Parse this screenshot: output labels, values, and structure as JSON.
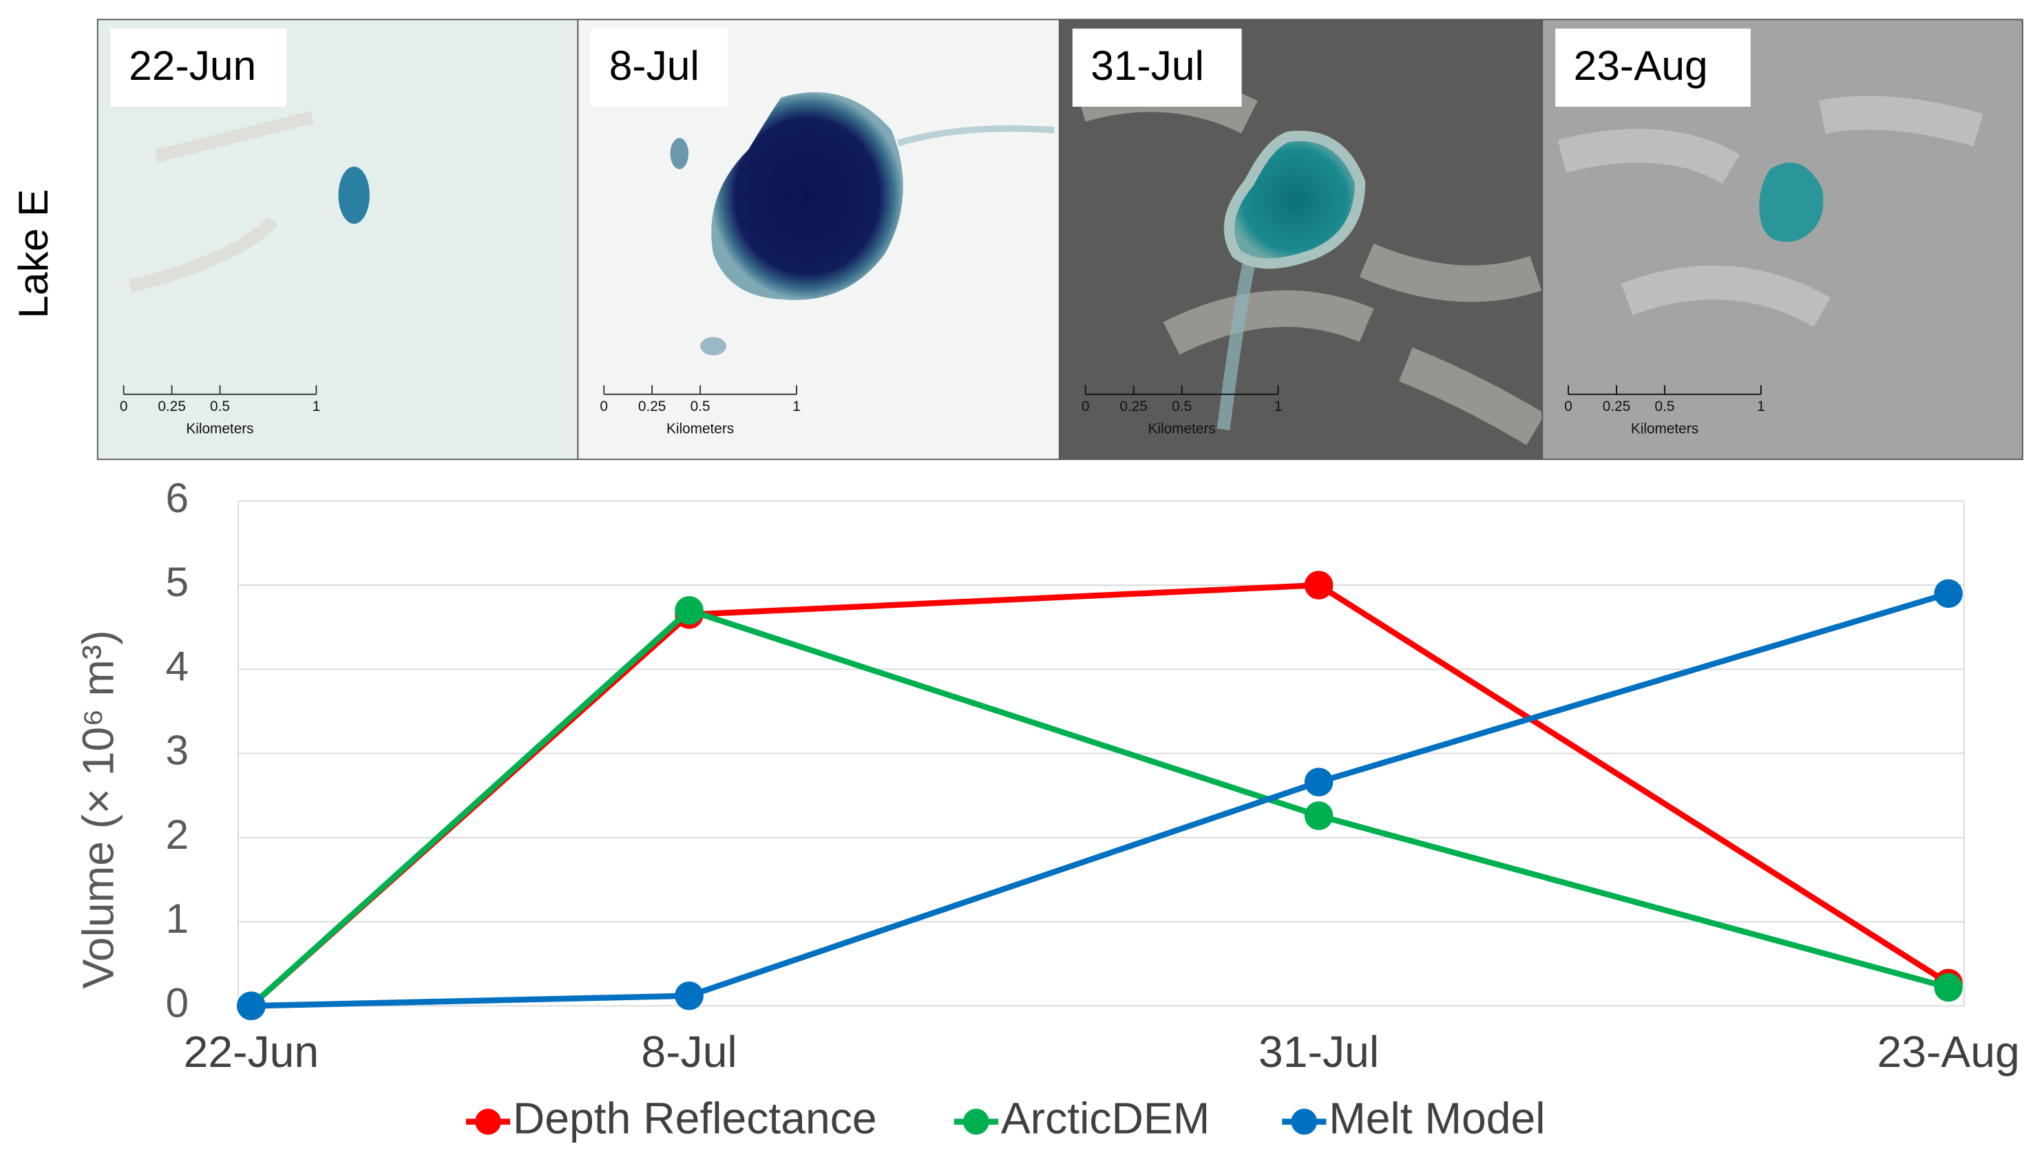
{
  "row_label": "Lake E",
  "panels": [
    {
      "label": "22-Jun"
    },
    {
      "label": "8-Jul"
    },
    {
      "label": "31-Jul"
    },
    {
      "label": "23-Aug"
    }
  ],
  "scale_bar": {
    "ticks": [
      0,
      0.25,
      0.5,
      1
    ],
    "label": "Kilometers"
  },
  "chart_data": {
    "type": "line",
    "y_label": "Volume (× 10⁶ m³)",
    "categories": [
      "22-Jun",
      "8-Jul",
      "31-Jul",
      "23-Aug"
    ],
    "series": [
      {
        "name": "Depth Reflectance",
        "color": "#ff0000",
        "values": [
          0,
          4.65,
          5.0,
          0.27
        ]
      },
      {
        "name": "ArcticDEM",
        "color": "#00b050",
        "values": [
          0,
          4.7,
          2.26,
          0.22
        ]
      },
      {
        "name": "Melt Model",
        "color": "#0070c0",
        "values": [
          0,
          0.12,
          2.66,
          4.9
        ]
      }
    ],
    "ylim": [
      0,
      6
    ],
    "yticks": [
      0,
      1,
      2,
      3,
      4,
      5,
      6
    ],
    "grid": true,
    "legend": "bottom"
  }
}
